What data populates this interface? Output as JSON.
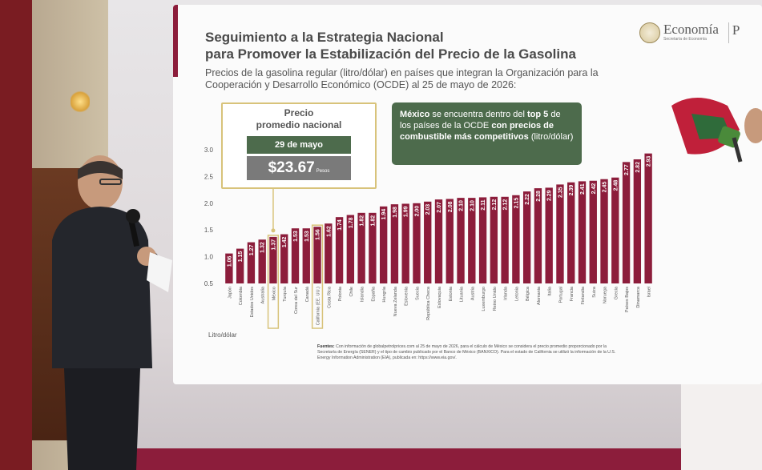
{
  "slide": {
    "title": "Seguimiento a la Estrategia Nacional\npara Promover la Estabilización del Precio de la Gasolina",
    "subtitle": "Precios de la gasolina regular (litro/dólar) en países que integran la Organización para la Cooperación y Desarrollo Económico (OCDE) al 25 de mayo de 2026:",
    "logo": {
      "name": "Economía",
      "sub": "Secretaría de Economía",
      "partial": "P"
    },
    "price_box": {
      "heading": "Precio\npromedio nacional",
      "date": "29 de mayo",
      "value": "$23.67",
      "unit": "Pesos"
    },
    "callout": {
      "part1": "México",
      "part2": " se encuentra dentro del ",
      "part3": "top 5",
      "part4": " de los países de la OCDE ",
      "part5": "con precios de combustible más competitivos",
      "part6": " (litro/dólar)"
    },
    "axis_unit": "litro/dólar",
    "sources": {
      "label": "Fuentes:",
      "text": " Con información de globalpetrolprices.com al 25 de mayo de 2026, para el cálculo de México se considera el precio promedio proporcionado por la Secretaría de Energía (SENER) y el tipo de cambio publicado por el Banco de México (BANXICO). Para el estado de California se utilizó la información de la U.S. Energy Information Administration (EIA), publicada en: https://www.eia.gov/."
    }
  },
  "colors": {
    "bar": "#8c1d3b",
    "highlight_border": "#d8c37a",
    "callout": "#4d6b4c",
    "price_gray": "#7a7a7a"
  },
  "chart_data": {
    "type": "bar",
    "categories": [
      "Japón",
      "Colombia",
      "Estados Unidos",
      "Australia",
      "México",
      "Turquía",
      "Corea del Sur",
      "Canadá",
      "California (EE. UU.)",
      "Costa Rica",
      "Polonia",
      "Chile",
      "Islandia",
      "España",
      "Hungría",
      "Nueva Zelanda",
      "Eslovenia",
      "Suecia",
      "República Checa",
      "Eslovaquia",
      "Estonia",
      "Lituania",
      "Austria",
      "Luxemburgo",
      "Reino Unido",
      "Irlanda",
      "Letonia",
      "Bélgica",
      "Alemania",
      "Italia",
      "Portugal",
      "Francia",
      "Finlandia",
      "Suiza",
      "Noruega",
      "Grecia",
      "Países Bajos",
      "Dinamarca",
      "Israel"
    ],
    "values": [
      1.06,
      1.15,
      1.27,
      1.32,
      1.37,
      1.42,
      1.53,
      1.53,
      1.56,
      1.62,
      1.74,
      1.78,
      1.82,
      1.82,
      1.94,
      1.98,
      1.99,
      2.0,
      2.03,
      2.07,
      2.08,
      2.1,
      2.1,
      2.11,
      2.12,
      2.12,
      2.15,
      2.22,
      2.28,
      2.29,
      2.35,
      2.39,
      2.41,
      2.42,
      2.45,
      2.48,
      2.77,
      2.82,
      2.93
    ],
    "value_labels": [
      "1.06",
      "1.15",
      "1.27",
      "1.32",
      "1.37",
      "1.42",
      "1.53",
      "1.53",
      "1.56",
      "1.62",
      "1.74",
      "1.78",
      "1.82",
      "1.82",
      "1.94",
      "1.98",
      "1.99",
      "2.00",
      "2.03",
      "2.07",
      "2.08",
      "2.10",
      "2.10",
      "2.11",
      "2.12",
      "2.12",
      "2.15",
      "2.22",
      "2.28",
      "2.29",
      "2.35",
      "2.39",
      "2.41",
      "2.42",
      "2.45",
      "2.48",
      "2.77",
      "2.82",
      "2.93"
    ],
    "highlighted": [
      "México",
      "California (EE. UU.)"
    ],
    "yticks": [
      "0.5",
      "1.0",
      "1.5",
      "2.0",
      "2.5",
      "3.0"
    ],
    "ylim": [
      0.5,
      3.0
    ],
    "ylabel": "Litro/dólar",
    "grid": false
  }
}
